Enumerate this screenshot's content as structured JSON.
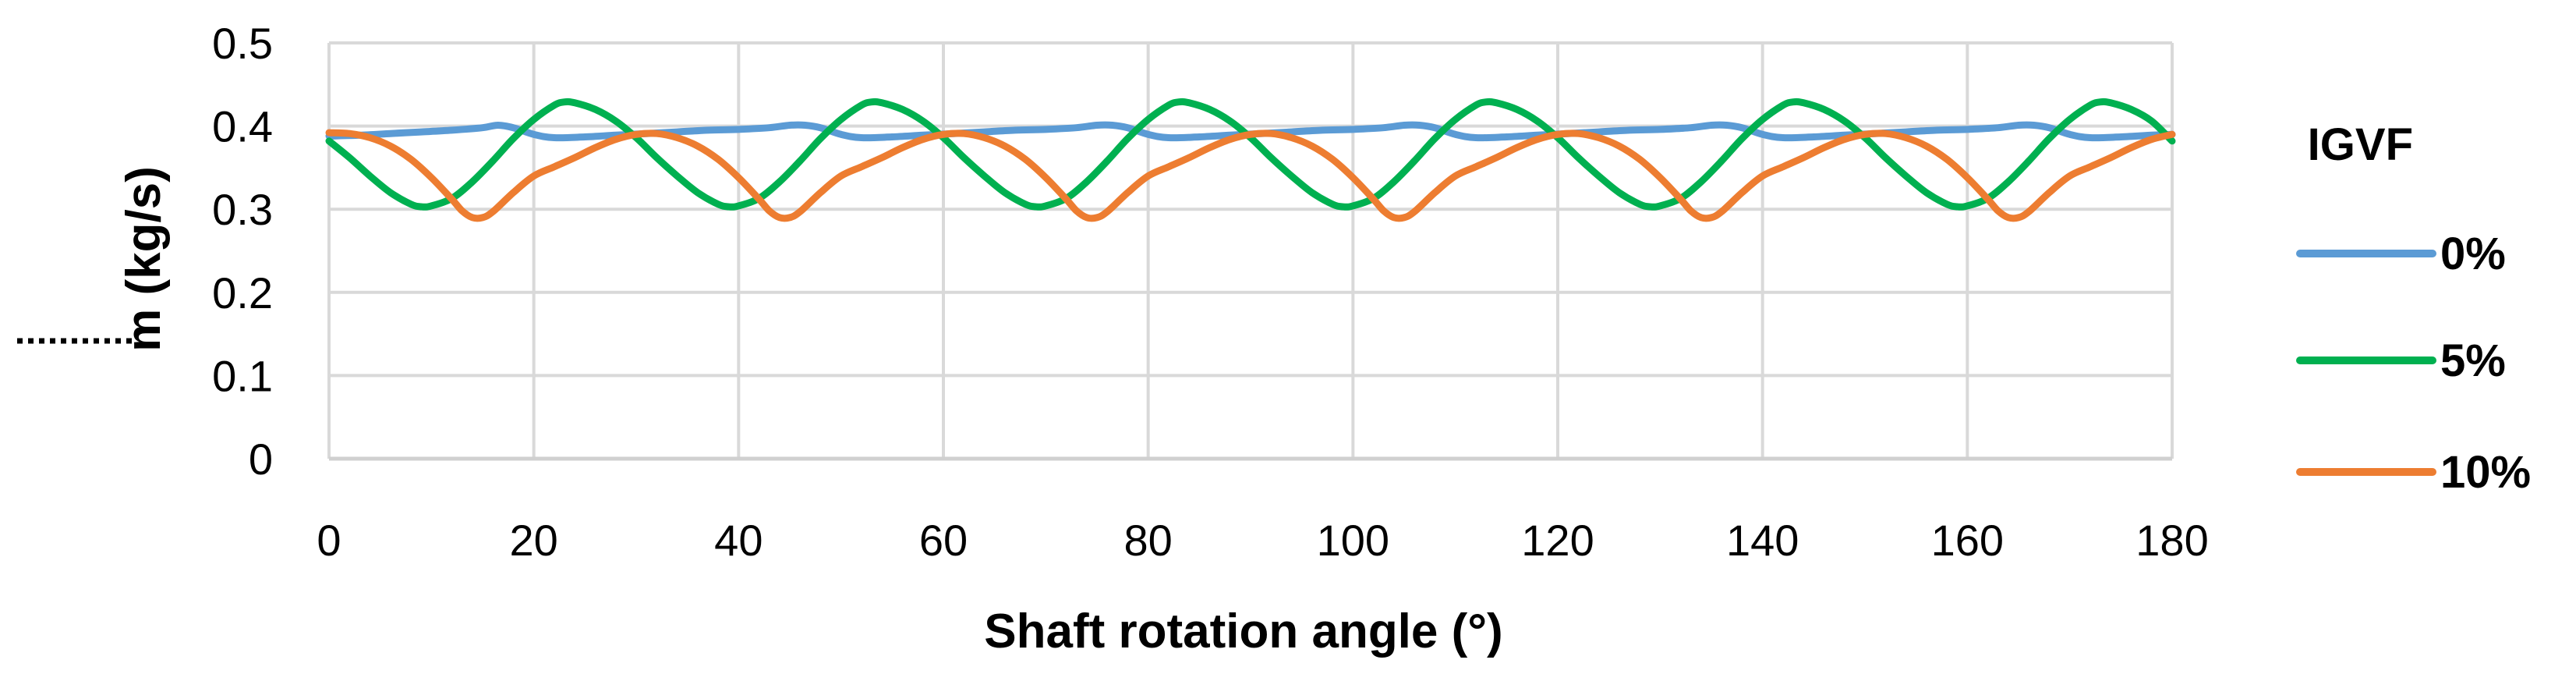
{
  "chart_data": {
    "type": "line",
    "xlabel": "Shaft rotation angle (°)",
    "ylabel": "m (kg/s)",
    "xlim": [
      0,
      180
    ],
    "ylim": [
      0,
      0.5
    ],
    "xticks": [
      0,
      20,
      40,
      60,
      80,
      100,
      120,
      140,
      160,
      180
    ],
    "yticks": [
      0,
      0.1,
      0.2,
      0.3,
      0.4,
      0.5
    ],
    "xtick_labels": [
      "0",
      "20",
      "40",
      "60",
      "80",
      "100",
      "120",
      "140",
      "160",
      "180"
    ],
    "ytick_labels": [
      "0",
      "0.1",
      "0.2",
      "0.3",
      "0.4",
      "0.5"
    ],
    "grid": true,
    "legend": {
      "title": "IGVF",
      "position": "right"
    },
    "series": [
      {
        "name": "0%",
        "color": "#5B9BD5",
        "x": [
          0,
          3,
          6,
          9,
          12,
          15,
          16.5,
          18,
          20,
          22,
          25,
          28,
          31,
          34,
          37,
          40,
          43,
          45,
          46.5,
          48,
          50,
          52,
          55,
          58,
          61,
          64,
          67,
          70,
          73,
          75,
          76.5,
          78,
          80,
          82,
          85,
          88,
          91,
          94,
          97,
          100,
          103,
          105,
          106.5,
          108,
          110,
          112,
          115,
          118,
          121,
          124,
          127,
          130,
          133,
          135,
          136.5,
          138,
          140,
          142,
          145,
          148,
          151,
          154,
          157,
          160,
          163,
          165,
          166.5,
          168,
          170,
          172,
          175,
          178,
          180
        ],
        "y": [
          0.388,
          0.389,
          0.391,
          0.393,
          0.395,
          0.398,
          0.401,
          0.398,
          0.39,
          0.386,
          0.387,
          0.389,
          0.391,
          0.393,
          0.395,
          0.396,
          0.398,
          0.401,
          0.401,
          0.398,
          0.39,
          0.386,
          0.387,
          0.389,
          0.391,
          0.393,
          0.395,
          0.396,
          0.398,
          0.401,
          0.401,
          0.398,
          0.39,
          0.386,
          0.387,
          0.389,
          0.391,
          0.393,
          0.395,
          0.396,
          0.398,
          0.401,
          0.401,
          0.398,
          0.39,
          0.386,
          0.387,
          0.389,
          0.391,
          0.393,
          0.395,
          0.396,
          0.398,
          0.401,
          0.401,
          0.398,
          0.39,
          0.386,
          0.387,
          0.389,
          0.391,
          0.393,
          0.395,
          0.396,
          0.398,
          0.401,
          0.401,
          0.398,
          0.39,
          0.386,
          0.387,
          0.389,
          0.39
        ]
      },
      {
        "name": "5%",
        "color": "#00B050",
        "x": [
          0,
          2,
          4,
          6,
          8,
          9,
          10,
          12,
          14,
          16,
          18,
          20,
          22,
          23,
          24,
          26,
          28,
          30,
          32,
          34,
          36,
          38,
          39,
          40,
          42,
          44,
          46,
          48,
          50,
          52,
          53,
          54,
          56,
          58,
          60,
          62,
          64,
          66,
          68,
          69,
          70,
          72,
          74,
          76,
          78,
          80,
          82,
          83,
          84,
          86,
          88,
          90,
          92,
          94,
          96,
          98,
          99,
          100,
          102,
          104,
          106,
          108,
          110,
          112,
          113,
          114,
          116,
          118,
          120,
          122,
          124,
          126,
          128,
          129,
          130,
          132,
          134,
          136,
          138,
          140,
          142,
          143,
          144,
          146,
          148,
          150,
          152,
          154,
          156,
          158,
          159,
          160,
          162,
          164,
          166,
          168,
          170,
          172,
          173,
          174,
          176,
          178,
          180
        ],
        "y": [
          0.382,
          0.362,
          0.34,
          0.32,
          0.306,
          0.303,
          0.304,
          0.313,
          0.333,
          0.358,
          0.385,
          0.408,
          0.425,
          0.429,
          0.428,
          0.42,
          0.406,
          0.386,
          0.362,
          0.34,
          0.32,
          0.306,
          0.303,
          0.304,
          0.313,
          0.333,
          0.358,
          0.385,
          0.408,
          0.425,
          0.429,
          0.428,
          0.42,
          0.406,
          0.386,
          0.362,
          0.34,
          0.32,
          0.306,
          0.303,
          0.304,
          0.313,
          0.333,
          0.358,
          0.385,
          0.408,
          0.425,
          0.429,
          0.428,
          0.42,
          0.406,
          0.386,
          0.362,
          0.34,
          0.32,
          0.306,
          0.303,
          0.304,
          0.313,
          0.333,
          0.358,
          0.385,
          0.408,
          0.425,
          0.429,
          0.428,
          0.42,
          0.406,
          0.386,
          0.362,
          0.34,
          0.32,
          0.306,
          0.303,
          0.304,
          0.313,
          0.333,
          0.358,
          0.385,
          0.408,
          0.425,
          0.429,
          0.428,
          0.42,
          0.406,
          0.386,
          0.362,
          0.34,
          0.32,
          0.306,
          0.303,
          0.304,
          0.313,
          0.333,
          0.358,
          0.385,
          0.408,
          0.425,
          0.429,
          0.428,
          0.42,
          0.406,
          0.382
        ]
      },
      {
        "name": "10%",
        "color": "#ED7D31",
        "x": [
          0,
          2,
          4,
          6,
          8,
          10,
          12,
          13,
          14,
          15,
          16,
          18,
          20,
          22,
          24,
          26,
          28,
          30,
          32,
          34,
          36,
          38,
          40,
          42,
          43,
          44,
          45,
          46,
          48,
          50,
          52,
          54,
          56,
          58,
          60,
          62,
          64,
          66,
          68,
          70,
          72,
          73,
          74,
          75,
          76,
          78,
          80,
          82,
          84,
          86,
          88,
          90,
          92,
          94,
          96,
          98,
          100,
          102,
          103,
          104,
          105,
          106,
          108,
          110,
          112,
          114,
          116,
          118,
          120,
          122,
          124,
          126,
          128,
          130,
          132,
          133,
          134,
          135,
          136,
          138,
          140,
          142,
          144,
          146,
          148,
          150,
          152,
          154,
          156,
          158,
          160,
          162,
          163,
          164,
          165,
          166,
          168,
          170,
          172,
          174,
          176,
          178,
          180
        ],
        "y": [
          0.392,
          0.391,
          0.386,
          0.376,
          0.36,
          0.338,
          0.312,
          0.298,
          0.29,
          0.29,
          0.297,
          0.32,
          0.34,
          0.351,
          0.362,
          0.374,
          0.384,
          0.39,
          0.391,
          0.386,
          0.376,
          0.36,
          0.338,
          0.312,
          0.298,
          0.29,
          0.29,
          0.297,
          0.32,
          0.34,
          0.351,
          0.362,
          0.374,
          0.384,
          0.39,
          0.391,
          0.386,
          0.376,
          0.36,
          0.338,
          0.312,
          0.298,
          0.29,
          0.29,
          0.297,
          0.32,
          0.34,
          0.351,
          0.362,
          0.374,
          0.384,
          0.39,
          0.391,
          0.386,
          0.376,
          0.36,
          0.338,
          0.312,
          0.298,
          0.29,
          0.29,
          0.297,
          0.32,
          0.34,
          0.351,
          0.362,
          0.374,
          0.384,
          0.39,
          0.391,
          0.386,
          0.376,
          0.36,
          0.338,
          0.312,
          0.298,
          0.29,
          0.29,
          0.297,
          0.32,
          0.34,
          0.351,
          0.362,
          0.374,
          0.384,
          0.39,
          0.391,
          0.386,
          0.376,
          0.36,
          0.338,
          0.312,
          0.298,
          0.29,
          0.29,
          0.297,
          0.32,
          0.34,
          0.351,
          0.362,
          0.374,
          0.384,
          0.39
        ]
      }
    ]
  }
}
